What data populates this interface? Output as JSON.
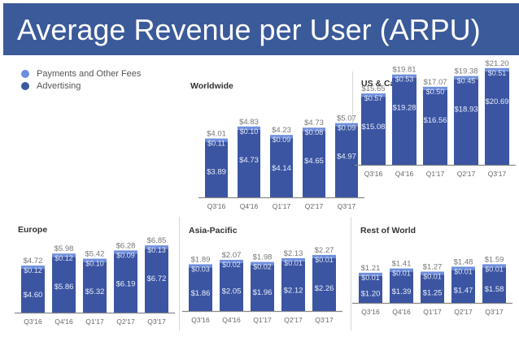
{
  "title": "Average Revenue per User (ARPU)",
  "legend": [
    {
      "label": "Payments and Other Fees",
      "color": "#6a8fe0"
    },
    {
      "label": "Advertising",
      "color": "#3b5a9a"
    }
  ],
  "colors": {
    "advertising": "#3b55a2",
    "payments": "#6f8fdc",
    "header": "#3b5a9a"
  },
  "chart_data": [
    {
      "type": "bar",
      "stacked": true,
      "title": "Worldwide",
      "categories": [
        "Q3'16",
        "Q4'16",
        "Q1'17",
        "Q2'17",
        "Q3'17"
      ],
      "series": [
        {
          "name": "Advertising",
          "values": [
            3.89,
            4.73,
            4.14,
            4.65,
            4.97
          ],
          "labels": [
            "$3.89",
            "$4.73",
            "$4.14",
            "$4.65",
            "$4.97"
          ]
        },
        {
          "name": "Payments and Other Fees",
          "values": [
            0.11,
            0.1,
            0.09,
            0.08,
            0.09
          ],
          "labels": [
            "$0.11",
            "$0.10",
            "$0.09",
            "$0.08",
            "$0.09"
          ]
        }
      ],
      "totals": [
        "$4.01",
        "$4.83",
        "$4.23",
        "$4.73",
        "$5.07"
      ],
      "total_values": [
        4.01,
        4.83,
        4.23,
        4.73,
        5.07
      ],
      "ylim": [
        0,
        5.4
      ]
    },
    {
      "type": "bar",
      "stacked": true,
      "title": "US & Canada",
      "categories": [
        "Q3'16",
        "Q4'16",
        "Q1'17",
        "Q2'17",
        "Q3'17"
      ],
      "series": [
        {
          "name": "Advertising",
          "values": [
            15.08,
            19.28,
            16.56,
            18.93,
            20.69
          ],
          "labels": [
            "$15.08",
            "$19.28",
            "$16.56",
            "$18.93",
            "$20.69"
          ]
        },
        {
          "name": "Payments and Other Fees",
          "values": [
            0.57,
            0.53,
            0.5,
            0.45,
            0.51
          ],
          "labels": [
            "$0.57",
            "$0.53",
            "$0.50",
            "$0.45",
            "$0.51"
          ]
        }
      ],
      "totals": [
        "$15.65",
        "$19.81",
        "$17.07",
        "$19.38",
        "$21.20"
      ],
      "total_values": [
        15.65,
        19.81,
        17.07,
        19.38,
        21.2
      ],
      "ylim": [
        0,
        21.2
      ]
    },
    {
      "type": "bar",
      "stacked": true,
      "title": "Europe",
      "categories": [
        "Q3'16",
        "Q4'16",
        "Q1'17",
        "Q2'17",
        "Q3'17"
      ],
      "series": [
        {
          "name": "Advertising",
          "values": [
            4.6,
            5.86,
            5.32,
            6.19,
            6.72
          ],
          "labels": [
            "$4.60",
            "$5.86",
            "$5.32",
            "$6.19",
            "$6.72"
          ]
        },
        {
          "name": "Payments and Other Fees",
          "values": [
            0.12,
            0.12,
            0.1,
            0.09,
            0.13
          ],
          "labels": [
            "$0.12",
            "$0.12",
            "$0.10",
            "$0.09",
            "$0.13"
          ]
        }
      ],
      "totals": [
        "$4.72",
        "$5.98",
        "$5.42",
        "$6.28",
        "$6.85"
      ],
      "total_values": [
        4.72,
        5.98,
        5.42,
        6.28,
        6.85
      ],
      "ylim": [
        0,
        7.5
      ]
    },
    {
      "type": "bar",
      "stacked": true,
      "title": "Asia-Pacific",
      "categories": [
        "Q3'16",
        "Q4'16",
        "Q1'17",
        "Q2'17",
        "Q3'17"
      ],
      "series": [
        {
          "name": "Advertising",
          "values": [
            1.86,
            2.05,
            1.96,
            2.12,
            2.26
          ],
          "labels": [
            "$1.86",
            "$2.05",
            "$1.96",
            "$2.12",
            "$2.26"
          ]
        },
        {
          "name": "Payments and Other Fees",
          "values": [
            0.03,
            0.02,
            0.02,
            0.01,
            0.01
          ],
          "labels": [
            "$0.03",
            "$0.02",
            "$0.02",
            "$0.01",
            "$0.01"
          ]
        }
      ],
      "totals": [
        "$1.89",
        "$2.07",
        "$1.98",
        "$2.13",
        "$2.27"
      ],
      "total_values": [
        1.89,
        2.07,
        1.98,
        2.13,
        2.27
      ],
      "ylim": [
        0,
        2.5
      ]
    },
    {
      "type": "bar",
      "stacked": true,
      "title": "Rest of World",
      "categories": [
        "Q3'16",
        "Q4'16",
        "Q1'17",
        "Q2'17",
        "Q3'17"
      ],
      "series": [
        {
          "name": "Advertising",
          "values": [
            1.2,
            1.39,
            1.25,
            1.47,
            1.58
          ],
          "labels": [
            "$1.20",
            "$1.39",
            "$1.25",
            "$1.47",
            "$1.58"
          ]
        },
        {
          "name": "Payments and Other Fees",
          "values": [
            0.01,
            0.01,
            0.01,
            0.01,
            0.01
          ],
          "labels": [
            "$0.01",
            "$0.01",
            "$0.01",
            "$0.01",
            "$0.01"
          ]
        }
      ],
      "totals": [
        "$1.21",
        "$1.41",
        "$1.27",
        "$1.48",
        "$1.59"
      ],
      "total_values": [
        1.21,
        1.41,
        1.27,
        1.48,
        1.59
      ],
      "ylim": [
        0,
        2.1
      ]
    }
  ]
}
